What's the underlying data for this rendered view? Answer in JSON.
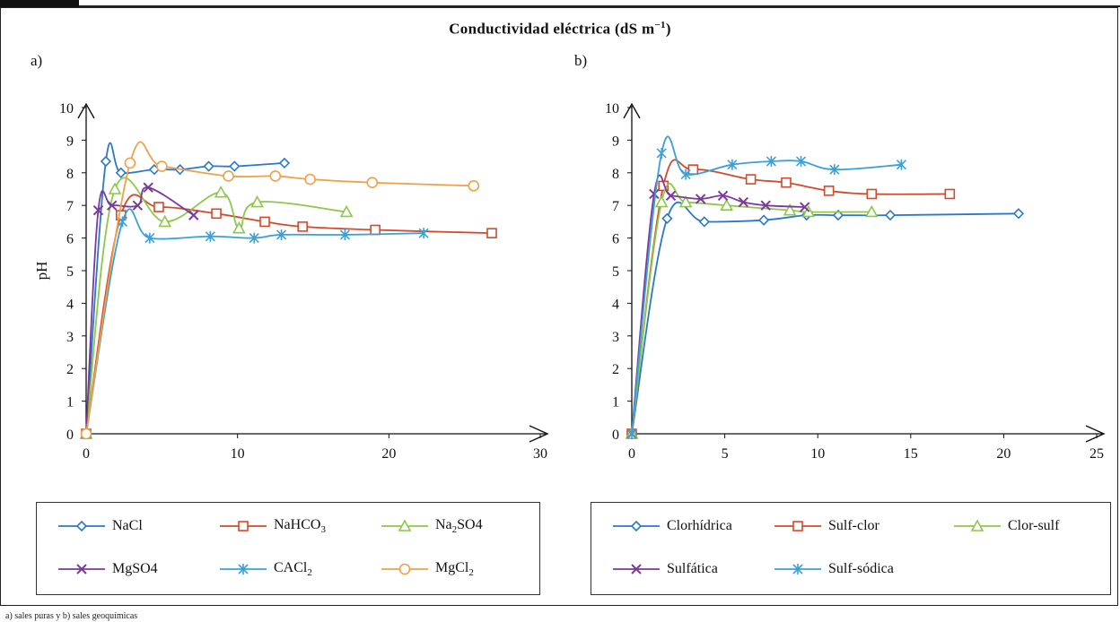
{
  "title": "Conductividad eléctrica (dS m",
  "title_sup": "−1",
  "title_close": ")",
  "footnote": "a) sales puras y b) sales geoquímicas",
  "chart_data": [
    {
      "type": "line",
      "panel": "a)",
      "ylabel": "pH",
      "xlim": [
        0,
        30
      ],
      "ylim": [
        0,
        10
      ],
      "xticks": [
        "0",
        "10",
        "20",
        "30"
      ],
      "yticks": [
        "0",
        "1",
        "2",
        "3",
        "4",
        "5",
        "6",
        "7",
        "8",
        "9",
        "10"
      ],
      "grid": false,
      "legend_position": "bottom",
      "series": [
        {
          "name": "NaCl",
          "legend_main": "NaCl",
          "legend_sub": "",
          "legend_tail": "",
          "color": "#2a78c8",
          "marker": "diamond",
          "x": [
            0,
            1.3,
            2.3,
            4.5,
            6.2,
            8.1,
            9.8,
            13.1
          ],
          "y": [
            0,
            8.35,
            8.0,
            8.1,
            8.1,
            8.2,
            8.2,
            8.3
          ]
        },
        {
          "name": "NaHCO3",
          "legend_main": "NaHCO",
          "legend_sub": "3",
          "legend_tail": "",
          "color": "#d24a2a",
          "marker": "square",
          "x": [
            0,
            2.3,
            4.8,
            8.6,
            11.8,
            14.3,
            19.1,
            26.8
          ],
          "y": [
            0,
            6.7,
            6.95,
            6.75,
            6.5,
            6.35,
            6.25,
            6.15
          ]
        },
        {
          "name": "Na2SO4",
          "legend_main": "Na",
          "legend_sub": "2",
          "legend_tail": "SO4",
          "color": "#8cc84a",
          "marker": "triangle",
          "x": [
            0,
            1.9,
            5.2,
            8.9,
            10.1,
            11.3,
            17.2
          ],
          "y": [
            0,
            7.5,
            6.5,
            7.4,
            6.3,
            7.1,
            6.8
          ]
        },
        {
          "name": "MgSO4",
          "legend_main": "MgSO4",
          "legend_sub": "",
          "legend_tail": "",
          "color": "#7a3a9a",
          "marker": "x",
          "x": [
            0,
            0.8,
            1.7,
            3.4,
            4.1,
            7.1
          ],
          "y": [
            0,
            6.85,
            7.0,
            7.0,
            7.55,
            6.7
          ]
        },
        {
          "name": "CACl2",
          "legend_main": "CACl",
          "legend_sub": "2",
          "legend_tail": "",
          "color": "#3aa0d8",
          "marker": "star",
          "x": [
            0,
            2.4,
            4.2,
            8.2,
            11.1,
            12.9,
            17.1,
            22.3
          ],
          "y": [
            0,
            6.5,
            6.0,
            6.05,
            6.0,
            6.1,
            6.1,
            6.15
          ]
        },
        {
          "name": "MgCl2",
          "legend_main": "MgCl",
          "legend_sub": "2",
          "legend_tail": "",
          "color": "#f0a048",
          "marker": "circle",
          "x": [
            0,
            2.9,
            5.0,
            9.4,
            12.5,
            14.8,
            18.9,
            25.6
          ],
          "y": [
            0,
            8.3,
            8.2,
            7.9,
            7.9,
            7.8,
            7.7,
            7.6
          ]
        }
      ]
    },
    {
      "type": "line",
      "panel": "b)",
      "ylabel": "",
      "xlim": [
        0,
        25
      ],
      "ylim": [
        0,
        10
      ],
      "xticks": [
        "0",
        "5",
        "10",
        "15",
        "20",
        "25"
      ],
      "yticks": [
        "0",
        "1",
        "2",
        "3",
        "4",
        "5",
        "6",
        "7",
        "8",
        "9",
        "10"
      ],
      "grid": false,
      "legend_position": "bottom",
      "series": [
        {
          "name": "Clorhídrica",
          "legend_main": "Clorhídrica",
          "legend_sub": "",
          "legend_tail": "",
          "color": "#2a78c8",
          "marker": "diamond",
          "x": [
            0,
            1.9,
            3.9,
            7.1,
            9.4,
            11.1,
            13.9,
            20.8
          ],
          "y": [
            0,
            6.6,
            6.5,
            6.55,
            6.7,
            6.7,
            6.7,
            6.75
          ]
        },
        {
          "name": "Sulf-clor",
          "legend_main": "Sulf-clor",
          "legend_sub": "",
          "legend_tail": "",
          "color": "#d24a2a",
          "marker": "square",
          "x": [
            0,
            1.7,
            3.3,
            6.4,
            8.3,
            10.6,
            12.9,
            17.1
          ],
          "y": [
            0,
            7.6,
            8.1,
            7.8,
            7.7,
            7.45,
            7.35,
            7.35
          ]
        },
        {
          "name": "Clor-sulf",
          "legend_main": "Clor-sulf",
          "legend_sub": "",
          "legend_tail": "",
          "color": "#8cc84a",
          "marker": "triangle",
          "x": [
            0,
            1.6,
            2.9,
            5.1,
            8.5,
            9.5,
            12.9
          ],
          "y": [
            0,
            7.1,
            7.1,
            7.0,
            6.85,
            6.8,
            6.8
          ]
        },
        {
          "name": "Sulfática",
          "legend_main": "Sulfática",
          "legend_sub": "",
          "legend_tail": "",
          "color": "#7a3a9a",
          "marker": "x",
          "x": [
            0,
            1.2,
            2.1,
            3.7,
            4.9,
            6.0,
            7.2,
            9.3
          ],
          "y": [
            0,
            7.35,
            7.3,
            7.2,
            7.3,
            7.1,
            7.0,
            6.95
          ]
        },
        {
          "name": "Sulf-sódica",
          "legend_main": "Sulf-sódica",
          "legend_sub": "",
          "legend_tail": "",
          "color": "#3aa0d8",
          "marker": "star",
          "x": [
            0,
            1.6,
            2.9,
            5.4,
            7.5,
            9.1,
            10.9,
            14.5
          ],
          "y": [
            0,
            8.6,
            7.95,
            8.25,
            8.35,
            8.35,
            8.1,
            8.25
          ]
        }
      ]
    }
  ]
}
